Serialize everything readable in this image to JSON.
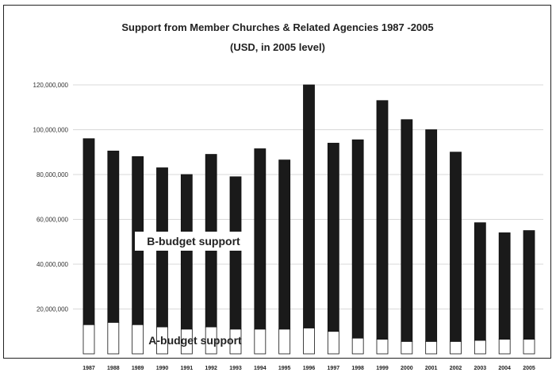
{
  "chart_data": {
    "type": "bar",
    "stacked": true,
    "title": "Support from Member Churches & Related Agencies 1987 -2005",
    "subtitle": "(USD, in 2005 level)",
    "xlabel": "",
    "ylabel": "",
    "categories": [
      "1987",
      "1988",
      "1989",
      "1990",
      "1991",
      "1992",
      "1993",
      "1994",
      "1995",
      "1996",
      "1997",
      "1998",
      "1999",
      "2000",
      "2001",
      "2002",
      "2003",
      "2004",
      "2005"
    ],
    "series": [
      {
        "name": "A-budget support",
        "color": "#ffffff",
        "values": [
          13000000,
          14000000,
          13000000,
          12000000,
          11000000,
          12000000,
          11000000,
          11000000,
          11000000,
          11500000,
          10000000,
          7000000,
          6500000,
          5500000,
          5500000,
          5500000,
          6000000,
          6500000,
          6500000
        ]
      },
      {
        "name": "B-budget support",
        "color": "#1a1a1a",
        "values": [
          83000000,
          76500000,
          75000000,
          71000000,
          69000000,
          77000000,
          68000000,
          80500000,
          75500000,
          108500000,
          84000000,
          88500000,
          106500000,
          99000000,
          94500000,
          84500000,
          52500000,
          47500000,
          48500000
        ]
      }
    ],
    "ylim": [
      0,
      120000000
    ],
    "yticks": [
      "20,000,000",
      "40,000,000",
      "60,000,000",
      "80,000,000",
      "100,000,000",
      "120,000,000"
    ],
    "ytick_values": [
      20000000,
      40000000,
      60000000,
      80000000,
      100000000,
      120000000
    ],
    "grid": true,
    "annotations": [
      {
        "text": "B-budget support",
        "series": "B-budget support"
      },
      {
        "text": "A-budget support",
        "series": "A-budget support"
      }
    ]
  }
}
